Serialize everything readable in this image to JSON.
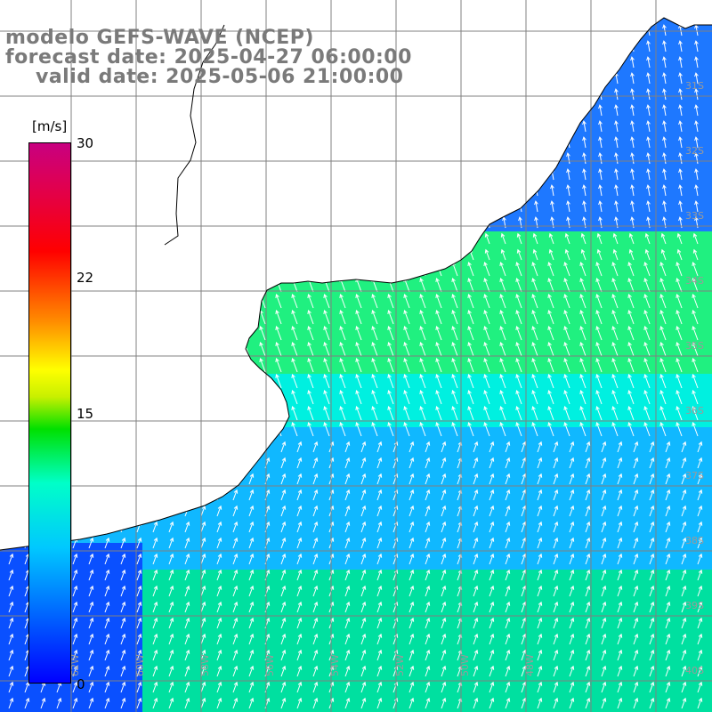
{
  "title": {
    "model": "modelo GEFS-WAVE (NCEP)",
    "forecast": "forecast date: 2025-04-27 06:00:00",
    "valid": "valid date: 2025-05-06 21:00:00"
  },
  "colorbar": {
    "unit": "[m/s]",
    "ticks": [
      "30",
      "22",
      "15",
      "0"
    ],
    "min": 0,
    "max": 30,
    "colors": [
      "#0000ff",
      "#00c8ff",
      "#00ffc8",
      "#00e000",
      "#ffff00",
      "#ff8c00",
      "#ff0000",
      "#c80080"
    ]
  },
  "map": {
    "variable": "wind speed and direction",
    "grid_lon_labels": [
      "62W",
      "60W",
      "58W",
      "56W",
      "54W",
      "52W",
      "50W",
      "48W"
    ],
    "grid_lat_labels": [
      "31S",
      "32S",
      "33S",
      "34S",
      "35S",
      "36S",
      "37S",
      "38S",
      "39S",
      "40S"
    ],
    "land_color": "#ffffff",
    "grid_color": "#808080",
    "coast_color": "#000000",
    "arrow_color": "#ffffff"
  }
}
